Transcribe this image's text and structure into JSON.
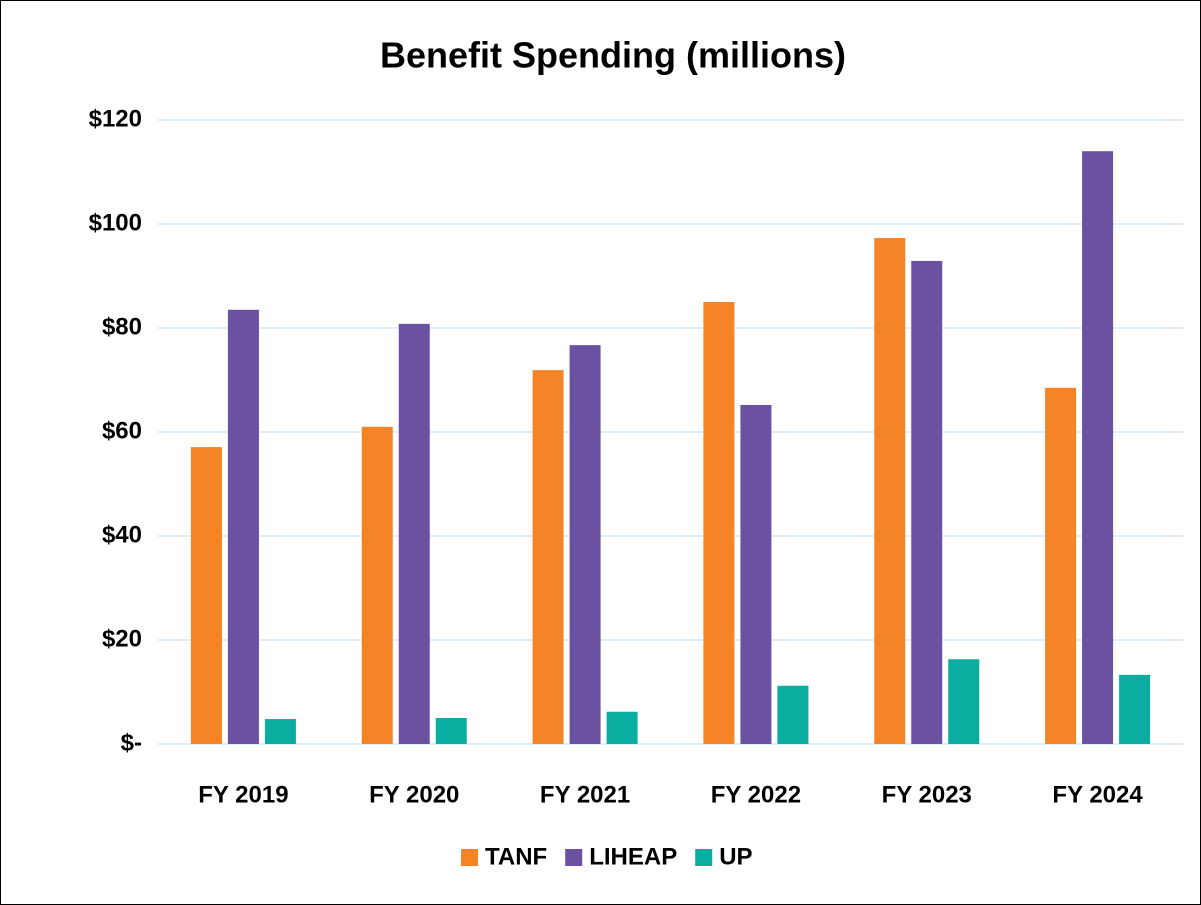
{
  "chart_data": {
    "type": "bar",
    "title": "Benefit Spending (millions)",
    "categories": [
      "FY 2019",
      "FY 2020",
      "FY 2021",
      "FY 2022",
      "FY 2023",
      "FY 2024"
    ],
    "series": [
      {
        "name": "TANF",
        "color": "#f58426",
        "values": [
          57.1,
          61,
          71.9,
          85,
          97.3,
          68.5
        ]
      },
      {
        "name": "LIHEAP",
        "color": "#6b51a1",
        "values": [
          83.5,
          80.8,
          76.7,
          65.2,
          92.9,
          114
        ]
      },
      {
        "name": "UP",
        "color": "#0aada0",
        "values": [
          4.8,
          5,
          6.2,
          11.2,
          16.3,
          13.3
        ]
      }
    ],
    "ylim": [
      0,
      120
    ],
    "yticks": [
      {
        "value": 0,
        "label": "$-"
      },
      {
        "value": 20,
        "label": "$20"
      },
      {
        "value": 40,
        "label": "$40"
      },
      {
        "value": 60,
        "label": "$60"
      },
      {
        "value": 80,
        "label": "$80"
      },
      {
        "value": 100,
        "label": "$100"
      },
      {
        "value": 120,
        "label": "$120"
      }
    ],
    "grid": true,
    "legend": "bottom"
  }
}
